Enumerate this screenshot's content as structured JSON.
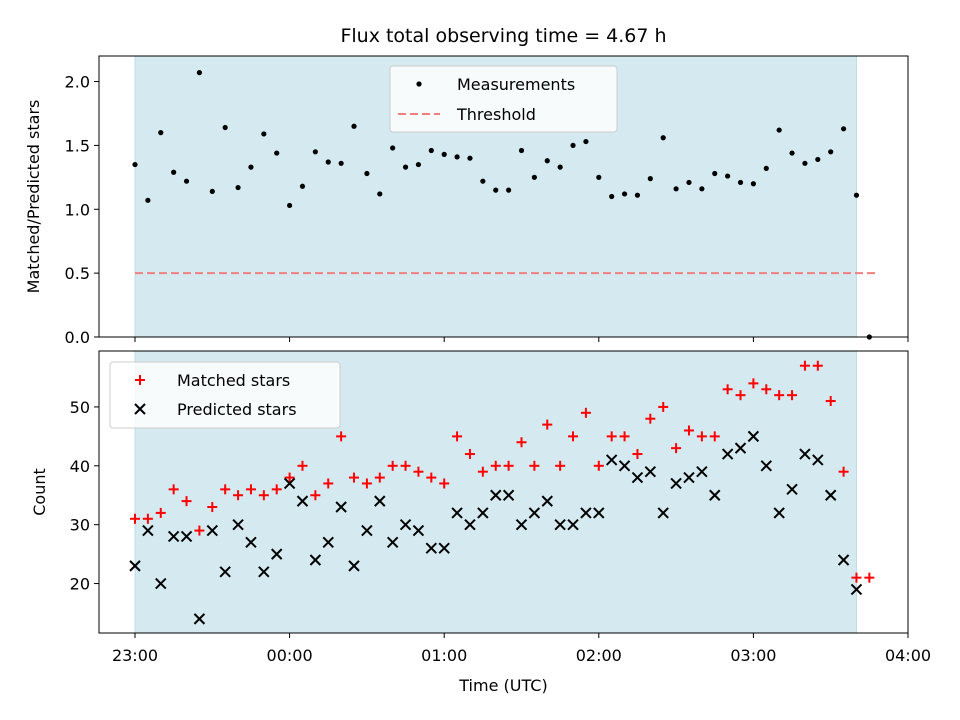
{
  "colors": {
    "observing_span": "#d4eaf0",
    "measurement_point": "#000000",
    "threshold_line": "#f08080",
    "matched_marker": "#ff0000",
    "predicted_marker": "#000000"
  },
  "chart_data": [
    {
      "type": "scatter",
      "title": "Flux total observing time = 4.67 h",
      "xlabel": "",
      "ylabel": "Matched/Predicted stars",
      "x_axis": "time (UTC), shared with lower panel",
      "xlim": [
        "23:00",
        "04:00"
      ],
      "ylim": [
        0,
        2.2
      ],
      "y_ticks": [
        "0.0",
        "0.5",
        "1.0",
        "1.5",
        "2.0"
      ],
      "shaded_span": [
        "23:00",
        "03:40"
      ],
      "legend_position": "upper center",
      "legend": {
        "measurements": "Measurements",
        "threshold": "Threshold"
      },
      "threshold": {
        "value": 0.5,
        "x_from": "23:00",
        "x_to": "03:48",
        "style": "dashed"
      },
      "series": [
        {
          "name": "Measurements",
          "marker": "dot",
          "points": [
            [
              "23:00",
              1.35
            ],
            [
              "23:05",
              1.07
            ],
            [
              "23:10",
              1.6
            ],
            [
              "23:15",
              1.29
            ],
            [
              "23:20",
              1.22
            ],
            [
              "23:25",
              2.07
            ],
            [
              "23:30",
              1.14
            ],
            [
              "23:35",
              1.64
            ],
            [
              "23:40",
              1.17
            ],
            [
              "23:45",
              1.33
            ],
            [
              "23:50",
              1.59
            ],
            [
              "23:55",
              1.44
            ],
            [
              "00:00",
              1.03
            ],
            [
              "00:05",
              1.18
            ],
            [
              "00:10",
              1.45
            ],
            [
              "00:15",
              1.37
            ],
            [
              "00:20",
              1.36
            ],
            [
              "00:25",
              1.65
            ],
            [
              "00:30",
              1.28
            ],
            [
              "00:35",
              1.12
            ],
            [
              "00:40",
              1.48
            ],
            [
              "00:45",
              1.33
            ],
            [
              "00:50",
              1.35
            ],
            [
              "00:55",
              1.46
            ],
            [
              "01:00",
              1.43
            ],
            [
              "01:05",
              1.41
            ],
            [
              "01:10",
              1.4
            ],
            [
              "01:15",
              1.22
            ],
            [
              "01:20",
              1.15
            ],
            [
              "01:25",
              1.15
            ],
            [
              "01:30",
              1.46
            ],
            [
              "01:35",
              1.25
            ],
            [
              "01:40",
              1.38
            ],
            [
              "01:45",
              1.33
            ],
            [
              "01:50",
              1.5
            ],
            [
              "01:55",
              1.53
            ],
            [
              "02:00",
              1.25
            ],
            [
              "02:05",
              1.1
            ],
            [
              "02:10",
              1.12
            ],
            [
              "02:15",
              1.11
            ],
            [
              "02:20",
              1.24
            ],
            [
              "02:25",
              1.56
            ],
            [
              "02:30",
              1.16
            ],
            [
              "02:35",
              1.21
            ],
            [
              "02:40",
              1.16
            ],
            [
              "02:45",
              1.28
            ],
            [
              "02:50",
              1.26
            ],
            [
              "02:55",
              1.21
            ],
            [
              "03:00",
              1.2
            ],
            [
              "03:05",
              1.32
            ],
            [
              "03:10",
              1.62
            ],
            [
              "03:15",
              1.44
            ],
            [
              "03:20",
              1.36
            ],
            [
              "03:25",
              1.39
            ],
            [
              "03:30",
              1.45
            ],
            [
              "03:35",
              1.63
            ],
            [
              "03:40",
              1.11
            ],
            [
              "03:45",
              0.0
            ]
          ]
        }
      ]
    },
    {
      "type": "scatter",
      "title": "",
      "xlabel": "Time (UTC)",
      "ylabel": "Count",
      "xlim": [
        "23:00",
        "04:00"
      ],
      "x_ticks": [
        "23:00",
        "00:00",
        "01:00",
        "02:00",
        "03:00",
        "04:00"
      ],
      "ylim": [
        11.6,
        59.5
      ],
      "y_ticks": [
        "20",
        "30",
        "40",
        "50"
      ],
      "shaded_span": [
        "23:00",
        "03:40"
      ],
      "legend_position": "upper left",
      "series": [
        {
          "name": "Matched stars",
          "marker": "plus",
          "points": [
            [
              "23:00",
              31
            ],
            [
              "23:05",
              31
            ],
            [
              "23:10",
              32
            ],
            [
              "23:15",
              36
            ],
            [
              "23:20",
              34
            ],
            [
              "23:25",
              29
            ],
            [
              "23:30",
              33
            ],
            [
              "23:35",
              36
            ],
            [
              "23:40",
              35
            ],
            [
              "23:45",
              36
            ],
            [
              "23:50",
              35
            ],
            [
              "23:55",
              36
            ],
            [
              "00:00",
              38
            ],
            [
              "00:05",
              40
            ],
            [
              "00:10",
              35
            ],
            [
              "00:15",
              37
            ],
            [
              "00:20",
              45
            ],
            [
              "00:25",
              38
            ],
            [
              "00:30",
              37
            ],
            [
              "00:35",
              38
            ],
            [
              "00:40",
              40
            ],
            [
              "00:45",
              40
            ],
            [
              "00:50",
              39
            ],
            [
              "00:55",
              38
            ],
            [
              "01:00",
              37
            ],
            [
              "01:05",
              45
            ],
            [
              "01:10",
              42
            ],
            [
              "01:15",
              39
            ],
            [
              "01:20",
              40
            ],
            [
              "01:25",
              40
            ],
            [
              "01:30",
              44
            ],
            [
              "01:35",
              40
            ],
            [
              "01:40",
              47
            ],
            [
              "01:45",
              40
            ],
            [
              "01:50",
              45
            ],
            [
              "01:55",
              49
            ],
            [
              "02:00",
              40
            ],
            [
              "02:05",
              45
            ],
            [
              "02:10",
              45
            ],
            [
              "02:15",
              42
            ],
            [
              "02:20",
              48
            ],
            [
              "02:25",
              50
            ],
            [
              "02:30",
              43
            ],
            [
              "02:35",
              46
            ],
            [
              "02:40",
              45
            ],
            [
              "02:45",
              45
            ],
            [
              "02:50",
              53
            ],
            [
              "02:55",
              52
            ],
            [
              "03:00",
              54
            ],
            [
              "03:05",
              53
            ],
            [
              "03:10",
              52
            ],
            [
              "03:15",
              52
            ],
            [
              "03:20",
              57
            ],
            [
              "03:25",
              57
            ],
            [
              "03:30",
              51
            ],
            [
              "03:35",
              39
            ],
            [
              "03:40",
              21
            ],
            [
              "03:45",
              21
            ]
          ]
        },
        {
          "name": "Predicted stars",
          "marker": "x",
          "points": [
            [
              "23:00",
              23
            ],
            [
              "23:05",
              29
            ],
            [
              "23:10",
              20
            ],
            [
              "23:15",
              28
            ],
            [
              "23:20",
              28
            ],
            [
              "23:25",
              14
            ],
            [
              "23:30",
              29
            ],
            [
              "23:35",
              22
            ],
            [
              "23:40",
              30
            ],
            [
              "23:45",
              27
            ],
            [
              "23:50",
              22
            ],
            [
              "23:55",
              25
            ],
            [
              "00:00",
              37
            ],
            [
              "00:05",
              34
            ],
            [
              "00:10",
              24
            ],
            [
              "00:15",
              27
            ],
            [
              "00:20",
              33
            ],
            [
              "00:25",
              23
            ],
            [
              "00:30",
              29
            ],
            [
              "00:35",
              34
            ],
            [
              "00:40",
              27
            ],
            [
              "00:45",
              30
            ],
            [
              "00:50",
              29
            ],
            [
              "00:55",
              26
            ],
            [
              "01:00",
              26
            ],
            [
              "01:05",
              32
            ],
            [
              "01:10",
              30
            ],
            [
              "01:15",
              32
            ],
            [
              "01:20",
              35
            ],
            [
              "01:25",
              35
            ],
            [
              "01:30",
              30
            ],
            [
              "01:35",
              32
            ],
            [
              "01:40",
              34
            ],
            [
              "01:45",
              30
            ],
            [
              "01:50",
              30
            ],
            [
              "01:55",
              32
            ],
            [
              "02:00",
              32
            ],
            [
              "02:05",
              41
            ],
            [
              "02:10",
              40
            ],
            [
              "02:15",
              38
            ],
            [
              "02:20",
              39
            ],
            [
              "02:25",
              32
            ],
            [
              "02:30",
              37
            ],
            [
              "02:35",
              38
            ],
            [
              "02:40",
              39
            ],
            [
              "02:45",
              35
            ],
            [
              "02:50",
              42
            ],
            [
              "02:55",
              43
            ],
            [
              "03:00",
              45
            ],
            [
              "03:05",
              40
            ],
            [
              "03:10",
              32
            ],
            [
              "03:15",
              36
            ],
            [
              "03:20",
              42
            ],
            [
              "03:25",
              41
            ],
            [
              "03:30",
              35
            ],
            [
              "03:35",
              24
            ],
            [
              "03:40",
              19
            ]
          ]
        }
      ]
    }
  ]
}
